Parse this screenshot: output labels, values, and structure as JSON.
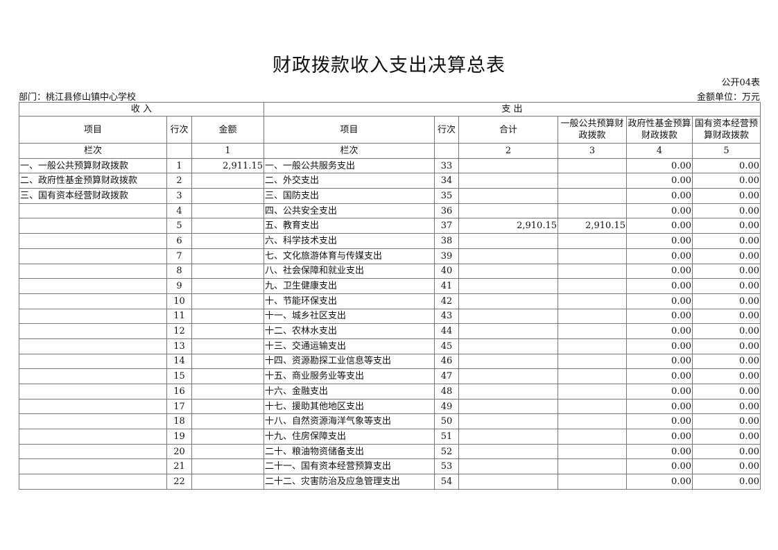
{
  "title": "财政拨款收入支出决算总表",
  "form_no": "公开04表",
  "department": "部门：桃江县修山镇中心学校",
  "unit": "金额单位：万元",
  "headers": {
    "income": "收 入",
    "expense": "支 出",
    "item": "项目",
    "row_no": "行次",
    "amount": "金额",
    "exp_item": "项目",
    "exp_row_no": "行次",
    "total": "合计",
    "general": "一般公共预算财政拨款",
    "gov_fund": "政府性基金预算财政拨款",
    "state_capital": "国有资本经营预算财政拨款",
    "col_label": "栏次",
    "col1": "1",
    "exp_col_label": "栏次",
    "col2": "2",
    "col3": "3",
    "col4": "4",
    "col5": "5"
  },
  "rows": [
    {
      "in_item": "一、一般公共预算财政拨款",
      "in_no": "1",
      "in_amt": "2,911.15",
      "ex_item": "一、一般公共服务支出",
      "ex_no": "33",
      "total": "",
      "general": "",
      "fund": "0.00",
      "capital": "0.00"
    },
    {
      "in_item": "二、政府性基金预算财政拨款",
      "in_no": "2",
      "in_amt": "",
      "ex_item": "二、外交支出",
      "ex_no": "34",
      "total": "",
      "general": "",
      "fund": "0.00",
      "capital": "0.00"
    },
    {
      "in_item": "三、国有资本经营财政拨款",
      "in_no": "3",
      "in_amt": "",
      "ex_item": "三、国防支出",
      "ex_no": "35",
      "total": "",
      "general": "",
      "fund": "0.00",
      "capital": "0.00"
    },
    {
      "in_item": "",
      "in_no": "4",
      "in_amt": "",
      "ex_item": "四、公共安全支出",
      "ex_no": "36",
      "total": "",
      "general": "",
      "fund": "0.00",
      "capital": "0.00"
    },
    {
      "in_item": "",
      "in_no": "5",
      "in_amt": "",
      "ex_item": "五、教育支出",
      "ex_no": "37",
      "total": "2,910.15",
      "general": "2,910.15",
      "fund": "0.00",
      "capital": "0.00"
    },
    {
      "in_item": "",
      "in_no": "6",
      "in_amt": "",
      "ex_item": "六、科学技术支出",
      "ex_no": "38",
      "total": "",
      "general": "",
      "fund": "0.00",
      "capital": "0.00"
    },
    {
      "in_item": "",
      "in_no": "7",
      "in_amt": "",
      "ex_item": "七、文化旅游体育与传媒支出",
      "ex_no": "39",
      "total": "",
      "general": "",
      "fund": "0.00",
      "capital": "0.00"
    },
    {
      "in_item": "",
      "in_no": "8",
      "in_amt": "",
      "ex_item": "八、社会保障和就业支出",
      "ex_no": "40",
      "total": "",
      "general": "",
      "fund": "0.00",
      "capital": "0.00"
    },
    {
      "in_item": "",
      "in_no": "9",
      "in_amt": "",
      "ex_item": "九、卫生健康支出",
      "ex_no": "41",
      "total": "",
      "general": "",
      "fund": "0.00",
      "capital": "0.00"
    },
    {
      "in_item": "",
      "in_no": "10",
      "in_amt": "",
      "ex_item": "十、节能环保支出",
      "ex_no": "42",
      "total": "",
      "general": "",
      "fund": "0.00",
      "capital": "0.00"
    },
    {
      "in_item": "",
      "in_no": "11",
      "in_amt": "",
      "ex_item": "十一、城乡社区支出",
      "ex_no": "43",
      "total": "",
      "general": "",
      "fund": "0.00",
      "capital": "0.00"
    },
    {
      "in_item": "",
      "in_no": "12",
      "in_amt": "",
      "ex_item": "十二、农林水支出",
      "ex_no": "44",
      "total": "",
      "general": "",
      "fund": "0.00",
      "capital": "0.00"
    },
    {
      "in_item": "",
      "in_no": "13",
      "in_amt": "",
      "ex_item": "十三、交通运输支出",
      "ex_no": "45",
      "total": "",
      "general": "",
      "fund": "0.00",
      "capital": "0.00"
    },
    {
      "in_item": "",
      "in_no": "14",
      "in_amt": "",
      "ex_item": "十四、资源勘探工业信息等支出",
      "ex_no": "46",
      "total": "",
      "general": "",
      "fund": "0.00",
      "capital": "0.00"
    },
    {
      "in_item": "",
      "in_no": "15",
      "in_amt": "",
      "ex_item": "十五、商业服务业等支出",
      "ex_no": "47",
      "total": "",
      "general": "",
      "fund": "0.00",
      "capital": "0.00"
    },
    {
      "in_item": "",
      "in_no": "16",
      "in_amt": "",
      "ex_item": "十六、金融支出",
      "ex_no": "48",
      "total": "",
      "general": "",
      "fund": "0.00",
      "capital": "0.00"
    },
    {
      "in_item": "",
      "in_no": "17",
      "in_amt": "",
      "ex_item": "十七、援助其他地区支出",
      "ex_no": "49",
      "total": "",
      "general": "",
      "fund": "0.00",
      "capital": "0.00"
    },
    {
      "in_item": "",
      "in_no": "18",
      "in_amt": "",
      "ex_item": "十八、自然资源海洋气象等支出",
      "ex_no": "50",
      "total": "",
      "general": "",
      "fund": "0.00",
      "capital": "0.00"
    },
    {
      "in_item": "",
      "in_no": "19",
      "in_amt": "",
      "ex_item": "十九、住房保障支出",
      "ex_no": "51",
      "total": "",
      "general": "",
      "fund": "0.00",
      "capital": "0.00"
    },
    {
      "in_item": "",
      "in_no": "20",
      "in_amt": "",
      "ex_item": "二十、粮油物资储备支出",
      "ex_no": "52",
      "total": "",
      "general": "",
      "fund": "0.00",
      "capital": "0.00"
    },
    {
      "in_item": "",
      "in_no": "21",
      "in_amt": "",
      "ex_item": "二十一、国有资本经营预算支出",
      "ex_no": "53",
      "total": "",
      "general": "",
      "fund": "0.00",
      "capital": "0.00"
    },
    {
      "in_item": "",
      "in_no": "22",
      "in_amt": "",
      "ex_item": "二十二、灾害防治及应急管理支出",
      "ex_no": "54",
      "total": "",
      "general": "",
      "fund": "0.00",
      "capital": "0.00"
    }
  ]
}
